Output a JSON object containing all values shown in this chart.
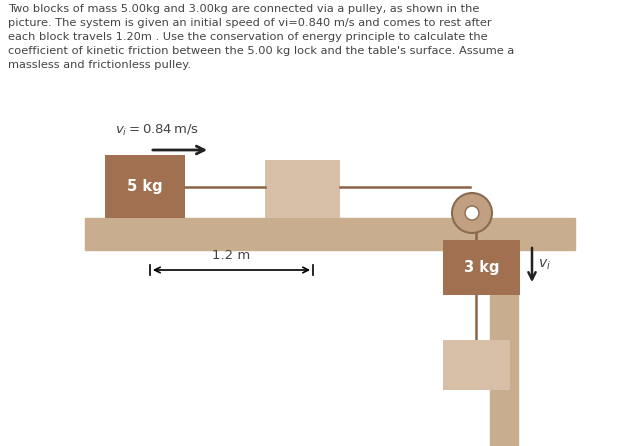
{
  "text_block": "Two blocks of mass 5.00kg and 3.00kg are connected via a pulley, as shown in the\npicture. The system is given an initial speed of vi=0.840 m/s and comes to rest after\neach block travels 1.20m . Use the conservation of energy principle to calculate the\ncoefficient of kinetic friction between the 5.00 kg lock and the table's surface. Assume a\nmassless and frictionless pulley.",
  "vi_label": "$v_i = 0.84\\,\\mathrm{m/s}$",
  "mass1_label": "5 kg",
  "mass2_label": "3 kg",
  "vi_label2": "$v_i$",
  "dist_label": "1.2 m",
  "bg_color": "#ffffff",
  "table_color": "#c8ad8f",
  "block1_color": "#a07050",
  "block2_color": "#d8c0a8",
  "block3_color": "#a07050",
  "block4_color": "#d8c0a8",
  "pulley_outer_color": "#c0a080",
  "pulley_inner_color": "#ffffff",
  "rope_color": "#8b6347",
  "leg_color": "#c8ad8f",
  "text_color": "#444444",
  "arrow_color": "#222222"
}
